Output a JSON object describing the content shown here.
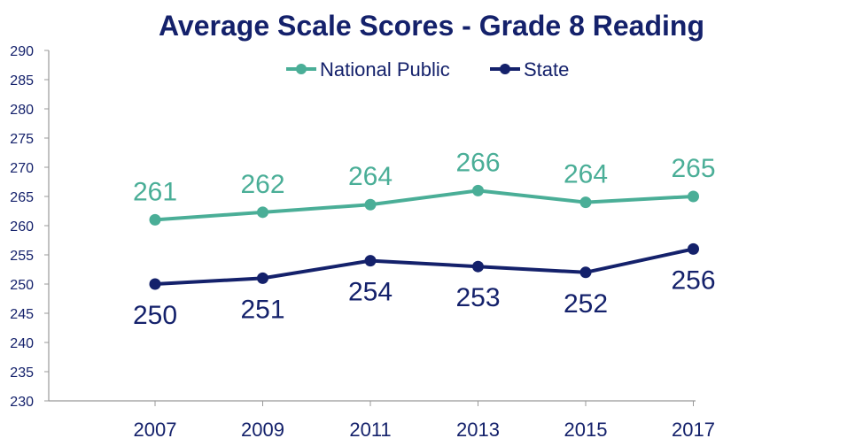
{
  "chart_data": {
    "type": "line",
    "title": "Average Scale Scores - Grade 8 Reading",
    "xlabel": "",
    "ylabel": "",
    "categories": [
      "2007",
      "2009",
      "2011",
      "2013",
      "2015",
      "2017"
    ],
    "ylim": [
      230,
      290
    ],
    "yticks": [
      230,
      235,
      240,
      245,
      250,
      255,
      260,
      265,
      270,
      275,
      280,
      285,
      290
    ],
    "grid": false,
    "legend": "top",
    "series": [
      {
        "name": "National Public",
        "color": "#4aae97",
        "values": [
          261,
          262.3,
          263.6,
          266,
          264,
          265
        ],
        "labels": [
          "261",
          "262",
          "264",
          "266",
          "264",
          "265"
        ],
        "label_position": "above"
      },
      {
        "name": "State",
        "color": "#14216b",
        "values": [
          250,
          251,
          254,
          253,
          252,
          256
        ],
        "labels": [
          "250",
          "251",
          "254",
          "253",
          "252",
          "256"
        ],
        "label_position": "below"
      }
    ],
    "title_color": "#14216b",
    "axis_color": "#14216b"
  }
}
